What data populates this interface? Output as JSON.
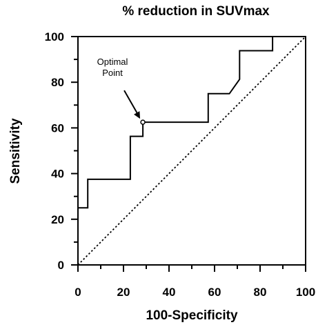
{
  "chart_data": {
    "type": "line",
    "title": "% reduction in SUVmax",
    "xlabel": "100-Specificity",
    "ylabel": "Sensitivity",
    "xlim": [
      0,
      100
    ],
    "ylim": [
      0,
      100
    ],
    "x_ticks": [
      0,
      20,
      40,
      60,
      80,
      100
    ],
    "y_ticks": [
      0,
      20,
      40,
      60,
      80,
      100
    ],
    "x_tick_labels": [
      "0",
      "20",
      "40",
      "60",
      "80",
      "100"
    ],
    "y_tick_labels": [
      "0",
      "20",
      "40",
      "60",
      "80",
      "100"
    ],
    "grid": false,
    "series": [
      {
        "style": "solid",
        "color": "#000000",
        "points": [
          [
            0,
            25
          ],
          [
            4.3,
            25
          ],
          [
            4.3,
            37.5
          ],
          [
            23,
            37.5
          ],
          [
            23,
            56.3
          ],
          [
            28.5,
            56.3
          ],
          [
            28.5,
            62.5
          ],
          [
            57.2,
            62.5
          ],
          [
            57.2,
            75
          ],
          [
            66.5,
            75
          ],
          [
            71,
            81.3
          ],
          [
            71,
            93.8
          ],
          [
            85.5,
            93.8
          ],
          [
            85.5,
            100
          ]
        ]
      },
      {
        "style": "dotted",
        "color": "#000000",
        "points": [
          [
            0,
            0
          ],
          [
            100,
            100
          ]
        ]
      }
    ],
    "annotation": {
      "lines": [
        "Optimal",
        "Point"
      ],
      "point": [
        28.5,
        62.5
      ]
    }
  }
}
